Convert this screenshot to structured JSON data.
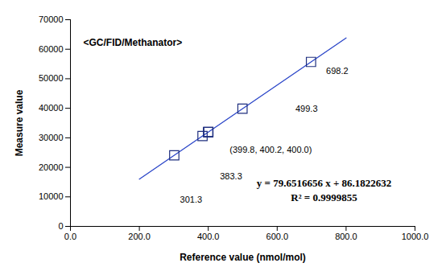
{
  "chart_data": {
    "type": "scatter",
    "title": "<GC/FID/Methanator>",
    "x_label": "Reference value (nmol/mol)",
    "y_label": "Measure value",
    "x": [
      301.3,
      383.3,
      399.8,
      400.2,
      400.0,
      499.3,
      698.2
    ],
    "values": [
      24086,
      30617,
      31931,
      31963,
      31947,
      39856,
      55700
    ],
    "color": "#1f2f7f",
    "marker": "square",
    "fit_line": {
      "x": [
        200,
        800
      ],
      "values": [
        16016,
        63808
      ],
      "color": "#2a45c8"
    },
    "equation": [
      "y = 79.6516656 x + 86.1822632",
      "R² = 0.9999855"
    ],
    "annotations": [
      {
        "text": "301.3",
        "x": 318,
        "y": 9000
      },
      {
        "text": "383.3",
        "x": 434,
        "y": 16900
      },
      {
        "text": "(399.8, 400.2, 400.0)",
        "x": 462,
        "y": 25900
      },
      {
        "text": "499.3",
        "x": 653,
        "y": 39800
      },
      {
        "text": "698.2",
        "x": 742,
        "y": 52600
      }
    ],
    "xlim": [
      0,
      1000
    ],
    "xticks": [
      {
        "value": 0,
        "label": "0.0"
      },
      {
        "value": 200,
        "label": "200.0"
      },
      {
        "value": 400,
        "label": "400.0"
      },
      {
        "value": 600,
        "label": "600.0"
      },
      {
        "value": 800,
        "label": "800.0"
      },
      {
        "value": 1000,
        "label": "1000.0"
      }
    ],
    "ylim": [
      0,
      70000
    ],
    "yticks": [
      0,
      10000,
      20000,
      30000,
      40000,
      50000,
      60000,
      70000
    ],
    "grid": false
  }
}
